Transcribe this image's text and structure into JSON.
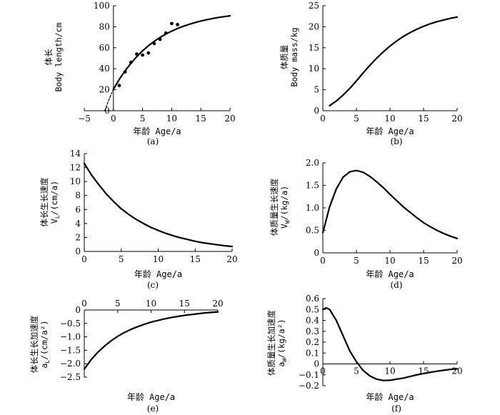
{
  "chart_data": [
    {
      "id": "a",
      "type": "scatter",
      "panel_label": "(a)",
      "xlabel": "年龄 Age/a",
      "ylabel_cn": "体长",
      "ylabel_en": "Body  length/cm",
      "xlim": [
        -5,
        20
      ],
      "ylim": [
        0,
        100
      ],
      "xticks": [
        -5,
        0,
        5,
        10,
        15,
        20
      ],
      "yticks": [
        0,
        20,
        40,
        60,
        80,
        100
      ],
      "xtick_labels": [
        "−5",
        "0",
        "5",
        "10",
        "15",
        "20"
      ],
      "ytick_labels": [
        "0",
        "20",
        "40",
        "60",
        "80",
        "100"
      ],
      "series": [
        {
          "name": "fitted",
          "style": "solid",
          "x": [
            0,
            1,
            2,
            3,
            4,
            5,
            6,
            7,
            8,
            9,
            10,
            11,
            12,
            13,
            14,
            15,
            16,
            17,
            18,
            19,
            20
          ],
          "y": [
            20.5,
            29.8,
            38,
            45.2,
            51.5,
            57,
            61.9,
            66.1,
            69.8,
            73,
            75.8,
            78.3,
            80.4,
            82.3,
            84,
            85.4,
            86.7,
            87.8,
            88.8,
            89.6,
            90.4
          ]
        },
        {
          "name": "extrapolated",
          "style": "dashed",
          "x": [
            -1.5,
            -1,
            -0.5,
            0
          ],
          "y": [
            0,
            7.2,
            14.1,
            20.5
          ]
        },
        {
          "name": "observed",
          "style": "points",
          "x": [
            1,
            2,
            3,
            4,
            5,
            6,
            7,
            8,
            9,
            10,
            11
          ],
          "y": [
            24,
            37,
            46,
            54,
            53,
            55,
            64,
            68,
            74,
            83,
            82
          ]
        }
      ]
    },
    {
      "id": "b",
      "type": "line",
      "panel_label": "(b)",
      "xlabel": "年龄 Age/a",
      "ylabel_cn": "体质量",
      "ylabel_en": "Body mass/kg",
      "xlim": [
        0,
        20
      ],
      "ylim": [
        0,
        25
      ],
      "xticks": [
        0,
        5,
        10,
        15,
        20
      ],
      "yticks": [
        0,
        5,
        10,
        15,
        20,
        25
      ],
      "xtick_labels": [
        "0",
        "5",
        "10",
        "15",
        "20"
      ],
      "ytick_labels": [
        "0",
        "5",
        "10",
        "15",
        "20",
        "25"
      ],
      "series": [
        {
          "name": "mass",
          "style": "solid",
          "x": [
            1,
            2,
            3,
            4,
            5,
            6,
            7,
            8,
            9,
            10,
            11,
            12,
            13,
            14,
            15,
            16,
            17,
            18,
            19,
            20
          ],
          "y": [
            1.2,
            2.3,
            3.7,
            5.3,
            7.1,
            9,
            10.8,
            12.5,
            14,
            15.4,
            16.6,
            17.7,
            18.6,
            19.4,
            20.1,
            20.7,
            21.2,
            21.6,
            22,
            22.3
          ]
        }
      ]
    },
    {
      "id": "c",
      "type": "line",
      "panel_label": "(c)",
      "xlabel": "年龄 Age/a",
      "ylabel_cn": "体长生长速度",
      "ylabel_en": "V_L/(cm/a)",
      "ylabel_en_main": "V",
      "ylabel_en_sub": "L",
      "ylabel_en_rest": "/(cm/a)",
      "xlim": [
        0,
        20
      ],
      "ylim": [
        0,
        14
      ],
      "xticks": [
        0,
        5,
        10,
        15,
        20
      ],
      "yticks": [
        0,
        2,
        4,
        6,
        8,
        10,
        12,
        14
      ],
      "xtick_labels": [
        "0",
        "5",
        "10",
        "15",
        "20"
      ],
      "ytick_labels": [
        "0",
        "2",
        "4",
        "6",
        "8",
        "10",
        "12",
        "14"
      ],
      "series": [
        {
          "name": "length_velocity",
          "style": "solid",
          "x": [
            0,
            1,
            2,
            3,
            4,
            5,
            6,
            7,
            8,
            9,
            10,
            11,
            12,
            13,
            14,
            15,
            16,
            17,
            18,
            19,
            20
          ],
          "y": [
            12.6,
            10.9,
            9.5,
            8.2,
            7.1,
            6.1,
            5.3,
            4.6,
            4,
            3.45,
            3,
            2.6,
            2.25,
            1.95,
            1.7,
            1.45,
            1.25,
            1.1,
            0.95,
            0.82,
            0.7
          ]
        }
      ]
    },
    {
      "id": "d",
      "type": "line",
      "panel_label": "(d)",
      "xlabel": "年龄 Age/a",
      "ylabel_cn": "体质量生长速度",
      "ylabel_en": "V_W/(kg/a)",
      "ylabel_en_main": "V",
      "ylabel_en_sub": "W",
      "ylabel_en_rest": "/(kg/a)",
      "xlim": [
        0,
        20
      ],
      "ylim": [
        0,
        2.0
      ],
      "xticks": [
        0,
        5,
        10,
        15,
        20
      ],
      "yticks": [
        0,
        0.5,
        1.0,
        1.5,
        2.0
      ],
      "xtick_labels": [
        "0",
        "5",
        "10",
        "15",
        "20"
      ],
      "ytick_labels": [
        "0",
        "0.5",
        "1.0",
        "1.5",
        "2.0"
      ],
      "series": [
        {
          "name": "mass_velocity",
          "style": "solid",
          "x": [
            0,
            1,
            2,
            3,
            4,
            5,
            6,
            7,
            8,
            9,
            10,
            11,
            12,
            13,
            14,
            15,
            16,
            17,
            18,
            19,
            20
          ],
          "y": [
            0.45,
            1.02,
            1.42,
            1.68,
            1.8,
            1.83,
            1.79,
            1.7,
            1.58,
            1.45,
            1.3,
            1.16,
            1.02,
            0.9,
            0.78,
            0.67,
            0.58,
            0.5,
            0.43,
            0.37,
            0.32
          ]
        }
      ]
    },
    {
      "id": "e",
      "type": "line",
      "panel_label": "(e)",
      "xlabel": "年龄 Age/a",
      "ylabel_cn": "体长生长加速度",
      "ylabel_en": "a_L/(cm/a²)",
      "ylabel_en_main": "a",
      "ylabel_en_sub": "L",
      "ylabel_en_rest": "/(cm/a²)",
      "xlim": [
        0,
        20
      ],
      "ylim": [
        -2.5,
        0
      ],
      "xticks": [
        0,
        5,
        10,
        15,
        20
      ],
      "yticks": [
        -2.5,
        -2.0,
        -1.5,
        -1.0,
        -0.5,
        0
      ],
      "xtick_labels": [
        "0",
        "5",
        "10",
        "15",
        "20"
      ],
      "ytick_labels": [
        "−2.5",
        "−2.0",
        "−1.5",
        "−1.0",
        "−0.5",
        "0"
      ],
      "series": [
        {
          "name": "length_acceleration",
          "style": "solid",
          "x": [
            0,
            1,
            2,
            3,
            4,
            5,
            6,
            7,
            8,
            9,
            10,
            11,
            12,
            13,
            14,
            15,
            16,
            17,
            18,
            19,
            20
          ],
          "y": [
            -2.2,
            -1.86,
            -1.58,
            -1.35,
            -1.15,
            -0.98,
            -0.84,
            -0.72,
            -0.62,
            -0.53,
            -0.45,
            -0.39,
            -0.33,
            -0.28,
            -0.24,
            -0.2,
            -0.17,
            -0.14,
            -0.11,
            -0.09,
            -0.07
          ]
        }
      ]
    },
    {
      "id": "f",
      "type": "line",
      "panel_label": "(f)",
      "xlabel": "年龄 Age/a",
      "ylabel_cn": "体质量生长加速度",
      "ylabel_en": "a_W/(kg/a²)",
      "ylabel_en_main": "a",
      "ylabel_en_sub": "W",
      "ylabel_en_rest": "/(kg/a²)",
      "xlim": [
        0,
        20
      ],
      "ylim": [
        -0.2,
        0.6
      ],
      "xticks": [
        0,
        5,
        10,
        15,
        20
      ],
      "yticks": [
        -0.2,
        -0.1,
        0,
        0.1,
        0.2,
        0.3,
        0.4,
        0.5,
        0.6
      ],
      "xtick_labels": [
        "0",
        "5",
        "10",
        "15",
        "20"
      ],
      "ytick_labels": [
        "−0.2",
        "−0.1",
        "0",
        "0.1",
        "0.2",
        "0.3",
        "0.4",
        "0.5",
        "0.6"
      ],
      "series": [
        {
          "name": "mass_acceleration",
          "style": "solid",
          "x": [
            0,
            0.5,
            1,
            2,
            3,
            4,
            5,
            6,
            7,
            8,
            9,
            10,
            11,
            12,
            13,
            14,
            15,
            16,
            17,
            18,
            19,
            20
          ],
          "y": [
            0.5,
            0.515,
            0.5,
            0.4,
            0.26,
            0.12,
            0.02,
            -0.06,
            -0.11,
            -0.14,
            -0.152,
            -0.15,
            -0.14,
            -0.13,
            -0.115,
            -0.1,
            -0.088,
            -0.077,
            -0.067,
            -0.058,
            -0.05,
            -0.045
          ]
        }
      ]
    }
  ]
}
